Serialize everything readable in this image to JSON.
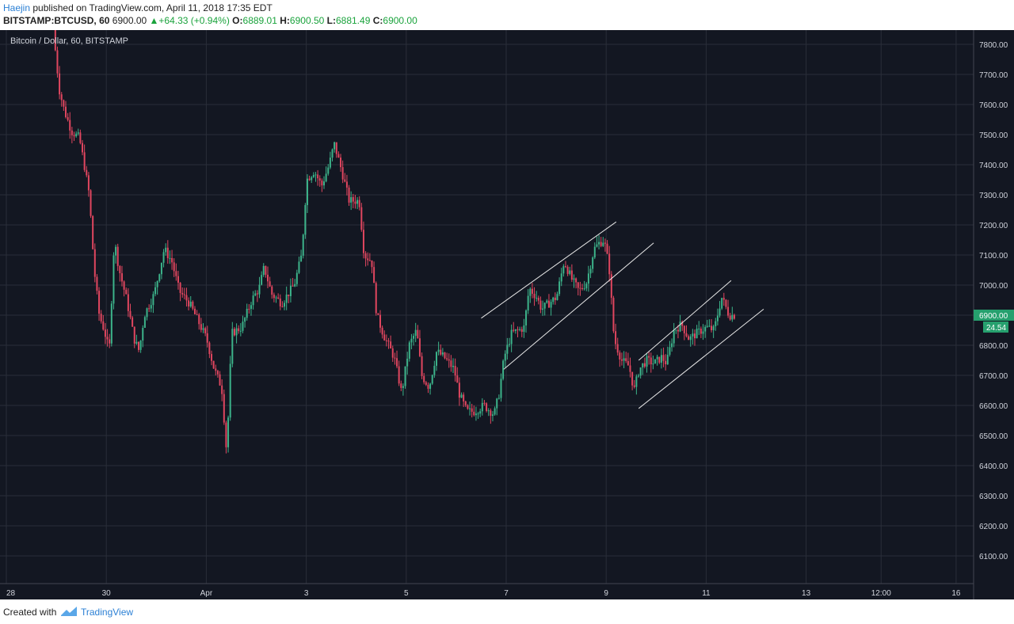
{
  "header": {
    "author": "Haejin",
    "published_text": "published on TradingView.com, April 11, 2018 17:35 EDT",
    "symbol": "BITSTAMP:BTCUSD, 60",
    "last": "6900.00",
    "change": "+64.33 (+0.94%)",
    "o_label": "O:",
    "o_value": "6889.01",
    "h_label": "H:",
    "h_value": "6900.50",
    "l_label": "L:",
    "l_value": "6881.49",
    "c_label": "C:",
    "c_value": "6900.00"
  },
  "footer": {
    "created": "Created with",
    "brand": "TradingView"
  },
  "colors": {
    "background": "#131722",
    "grid": "#2a2e39",
    "up": "#3cb38a",
    "down": "#e0465f",
    "channel": "#e8e8e8",
    "price_tag": "#26a06e"
  },
  "chart_data": {
    "type": "candlestick",
    "title": "Bitcoin / Dollar, 60, BITSTAMP",
    "ylim": [
      6000,
      7850
    ],
    "y_ticks": [
      6100,
      6200,
      6300,
      6400,
      6500,
      6600,
      6700,
      6800,
      6900,
      7000,
      7100,
      7200,
      7300,
      7400,
      7500,
      7600,
      7700,
      7800
    ],
    "x_ticks": [
      {
        "label": "28",
        "t": 0
      },
      {
        "label": "30",
        "t": 2
      },
      {
        "label": "Apr",
        "t": 4
      },
      {
        "label": "3",
        "t": 6
      },
      {
        "label": "5",
        "t": 8
      },
      {
        "label": "7",
        "t": 10
      },
      {
        "label": "9",
        "t": 12
      },
      {
        "label": "11",
        "t": 14
      },
      {
        "label": "13",
        "t": 16
      },
      {
        "label": "12:00",
        "t": 17.5
      },
      {
        "label": "16",
        "t": 19
      }
    ],
    "price_label": "6900.00",
    "countdown_label": "24.54",
    "anchors": [
      [
        0.98,
        7850
      ],
      [
        1.1,
        7650
      ],
      [
        1.2,
        7580
      ],
      [
        1.35,
        7510
      ],
      [
        1.5,
        7490
      ],
      [
        1.6,
        7400
      ],
      [
        1.7,
        7300
      ],
      [
        1.8,
        7050
      ],
      [
        1.9,
        6900
      ],
      [
        2.0,
        6850
      ],
      [
        2.1,
        6780
      ],
      [
        2.2,
        7150
      ],
      [
        2.3,
        7050
      ],
      [
        2.45,
        6950
      ],
      [
        2.6,
        6820
      ],
      [
        2.7,
        6780
      ],
      [
        2.8,
        6900
      ],
      [
        3.0,
        6970
      ],
      [
        3.2,
        7120
      ],
      [
        3.35,
        7080
      ],
      [
        3.5,
        6980
      ],
      [
        3.7,
        6940
      ],
      [
        3.85,
        6890
      ],
      [
        4.05,
        6820
      ],
      [
        4.2,
        6720
      ],
      [
        4.35,
        6660
      ],
      [
        4.45,
        6440
      ],
      [
        4.55,
        6840
      ],
      [
        4.75,
        6860
      ],
      [
        4.95,
        6950
      ],
      [
        5.1,
        6990
      ],
      [
        5.2,
        7060
      ],
      [
        5.35,
        6970
      ],
      [
        5.55,
        6940
      ],
      [
        5.8,
        7000
      ],
      [
        5.95,
        7100
      ],
      [
        6.05,
        7350
      ],
      [
        6.2,
        7380
      ],
      [
        6.35,
        7330
      ],
      [
        6.5,
        7400
      ],
      [
        6.6,
        7470
      ],
      [
        6.75,
        7380
      ],
      [
        6.9,
        7280
      ],
      [
        7.1,
        7280
      ],
      [
        7.2,
        7100
      ],
      [
        7.35,
        7080
      ],
      [
        7.45,
        6900
      ],
      [
        7.6,
        6830
      ],
      [
        7.8,
        6760
      ],
      [
        7.95,
        6640
      ],
      [
        8.1,
        6800
      ],
      [
        8.25,
        6850
      ],
      [
        8.35,
        6700
      ],
      [
        8.5,
        6660
      ],
      [
        8.65,
        6780
      ],
      [
        8.8,
        6760
      ],
      [
        9.0,
        6720
      ],
      [
        9.1,
        6640
      ],
      [
        9.25,
        6580
      ],
      [
        9.4,
        6580
      ],
      [
        9.6,
        6600
      ],
      [
        9.8,
        6570
      ],
      [
        9.9,
        6640
      ],
      [
        10.0,
        6760
      ],
      [
        10.15,
        6840
      ],
      [
        10.3,
        6850
      ],
      [
        10.4,
        6860
      ],
      [
        10.5,
        6990
      ],
      [
        10.65,
        6960
      ],
      [
        10.75,
        6920
      ],
      [
        10.9,
        6940
      ],
      [
        11.05,
        6960
      ],
      [
        11.2,
        7080
      ],
      [
        11.35,
        7020
      ],
      [
        11.5,
        6980
      ],
      [
        11.65,
        7010
      ],
      [
        11.8,
        7120
      ],
      [
        11.9,
        7140
      ],
      [
        12.0,
        7150
      ],
      [
        12.1,
        7060
      ],
      [
        12.2,
        6820
      ],
      [
        12.35,
        6750
      ],
      [
        12.5,
        6730
      ],
      [
        12.6,
        6650
      ],
      [
        12.7,
        6720
      ],
      [
        12.85,
        6750
      ],
      [
        13.0,
        6740
      ],
      [
        13.15,
        6760
      ],
      [
        13.25,
        6740
      ],
      [
        13.4,
        6850
      ],
      [
        13.55,
        6870
      ],
      [
        13.7,
        6820
      ],
      [
        13.85,
        6840
      ],
      [
        14.05,
        6860
      ],
      [
        14.2,
        6850
      ],
      [
        14.35,
        6960
      ],
      [
        14.5,
        6900
      ],
      [
        14.6,
        6900
      ]
    ],
    "channels": [
      {
        "start": [
          9.5,
          6890
        ],
        "end": [
          12.2,
          7210
        ]
      },
      {
        "start": [
          9.95,
          6720
        ],
        "end": [
          12.95,
          7140
        ]
      },
      {
        "start": [
          12.65,
          6750
        ],
        "end": [
          14.5,
          7015
        ]
      },
      {
        "start": [
          12.65,
          6590
        ],
        "end": [
          15.15,
          6920
        ]
      }
    ]
  }
}
